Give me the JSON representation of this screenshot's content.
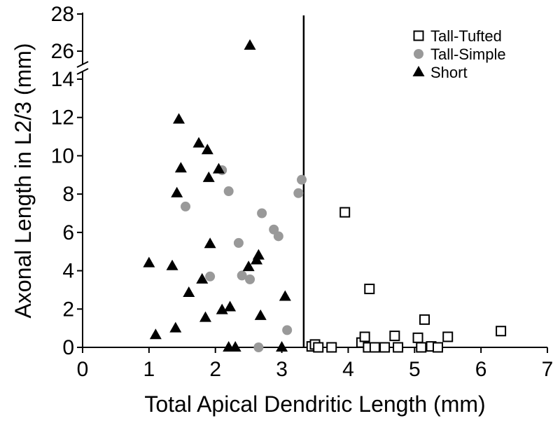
{
  "chart_data": {
    "type": "scatter",
    "title": "",
    "xlabel": "Total Apical Dendritic Length (mm)",
    "ylabel": "Axonal Length in L2/3 (mm)",
    "xlim": [
      0,
      7
    ],
    "ylim": [
      0,
      28
    ],
    "y_axis_break": [
      14,
      25
    ],
    "x_ticks": [
      "0",
      "1",
      "2",
      "3",
      "4",
      "5",
      "6",
      "7"
    ],
    "x_tick_values": [
      0,
      1,
      2,
      3,
      4,
      5,
      6,
      7
    ],
    "y_ticks_lower": [
      "0",
      "2",
      "4",
      "6",
      "8",
      "10",
      "12",
      "14"
    ],
    "y_tick_values_lower": [
      0,
      2,
      4,
      6,
      8,
      10,
      12,
      14
    ],
    "y_ticks_upper": [
      "26",
      "28"
    ],
    "y_tick_values_upper": [
      26,
      28
    ],
    "vertical_line_x": 3.33,
    "legend_position": "top-right",
    "grid": false,
    "series": [
      {
        "name": "Tall-Tufted",
        "marker": "open-square",
        "color": "#000000",
        "points": [
          [
            3.45,
            0.05
          ],
          [
            3.5,
            0.15
          ],
          [
            3.55,
            0.0
          ],
          [
            3.75,
            0.0
          ],
          [
            3.95,
            7.05
          ],
          [
            4.2,
            0.25
          ],
          [
            4.25,
            0.55
          ],
          [
            4.3,
            0.0
          ],
          [
            4.32,
            3.05
          ],
          [
            4.4,
            0.0
          ],
          [
            4.55,
            0.0
          ],
          [
            4.7,
            0.6
          ],
          [
            4.75,
            0.0
          ],
          [
            5.05,
            0.5
          ],
          [
            5.1,
            0.0
          ],
          [
            5.15,
            1.45
          ],
          [
            5.25,
            0.05
          ],
          [
            5.35,
            0.0
          ],
          [
            5.5,
            0.55
          ],
          [
            6.3,
            0.85
          ]
        ]
      },
      {
        "name": "Tall-Simple",
        "marker": "filled-circle",
        "color": "#999999",
        "points": [
          [
            1.55,
            7.35
          ],
          [
            1.92,
            3.7
          ],
          [
            2.1,
            9.25
          ],
          [
            2.2,
            8.15
          ],
          [
            2.35,
            5.45
          ],
          [
            2.4,
            3.75
          ],
          [
            2.52,
            3.55
          ],
          [
            2.65,
            0.0
          ],
          [
            2.7,
            7.0
          ],
          [
            2.88,
            6.15
          ],
          [
            2.95,
            5.8
          ],
          [
            3.08,
            0.9
          ],
          [
            3.25,
            8.05
          ],
          [
            3.3,
            8.75
          ]
        ]
      },
      {
        "name": "Short",
        "marker": "filled-triangle",
        "color": "#000000",
        "points": [
          [
            1.0,
            4.4
          ],
          [
            1.1,
            0.65
          ],
          [
            1.35,
            4.25
          ],
          [
            1.4,
            1.0
          ],
          [
            1.42,
            8.05
          ],
          [
            1.45,
            11.9
          ],
          [
            1.48,
            9.35
          ],
          [
            1.6,
            2.85
          ],
          [
            1.75,
            10.65
          ],
          [
            1.8,
            3.55
          ],
          [
            1.85,
            1.55
          ],
          [
            1.88,
            10.3
          ],
          [
            1.9,
            8.85
          ],
          [
            1.92,
            5.4
          ],
          [
            2.05,
            9.3
          ],
          [
            2.1,
            1.95
          ],
          [
            2.2,
            0.0
          ],
          [
            2.22,
            2.1
          ],
          [
            2.3,
            0.0
          ],
          [
            2.5,
            4.2
          ],
          [
            2.52,
            26.3
          ],
          [
            2.62,
            4.55
          ],
          [
            2.65,
            4.8
          ],
          [
            2.68,
            1.65
          ],
          [
            3.0,
            0.0
          ],
          [
            3.05,
            2.65
          ]
        ]
      }
    ]
  }
}
